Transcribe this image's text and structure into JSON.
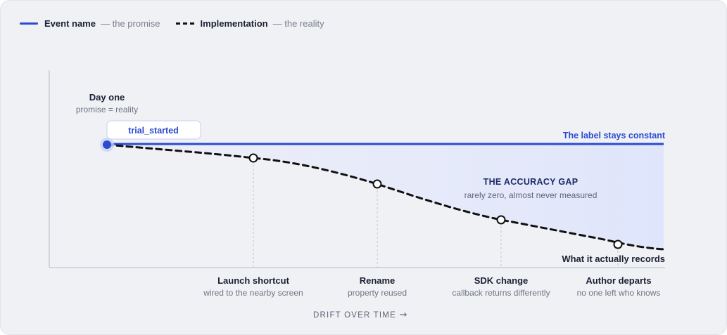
{
  "legend": {
    "event_name": "Event name",
    "event_note": "— the promise",
    "implementation": "Implementation",
    "implementation_note": "— the reality"
  },
  "start": {
    "title": "Day one",
    "subtitle": "promise = reality",
    "event_chip": "trial_started"
  },
  "labels": {
    "label_constant": "The label stays constant",
    "gap_title": "THE ACCURACY GAP",
    "gap_subtitle": "rarely zero, almost never measured",
    "actual_records": "What it actually records",
    "x_axis": "DRIFT OVER TIME",
    "x_axis_arrow": "→"
  },
  "milestones": [
    {
      "title": "Launch shortcut",
      "subtitle": "wired to the nearby screen"
    },
    {
      "title": "Rename",
      "subtitle": "property reused"
    },
    {
      "title": "SDK change",
      "subtitle": "callback returns differently"
    },
    {
      "title": "Author departs",
      "subtitle": "no one left who knows"
    }
  ],
  "colors": {
    "promise_line": "#2b4bd0",
    "reality_line": "#111111",
    "gap_fill": "#dfe5fb",
    "gap_text": "#1e2a66"
  }
}
